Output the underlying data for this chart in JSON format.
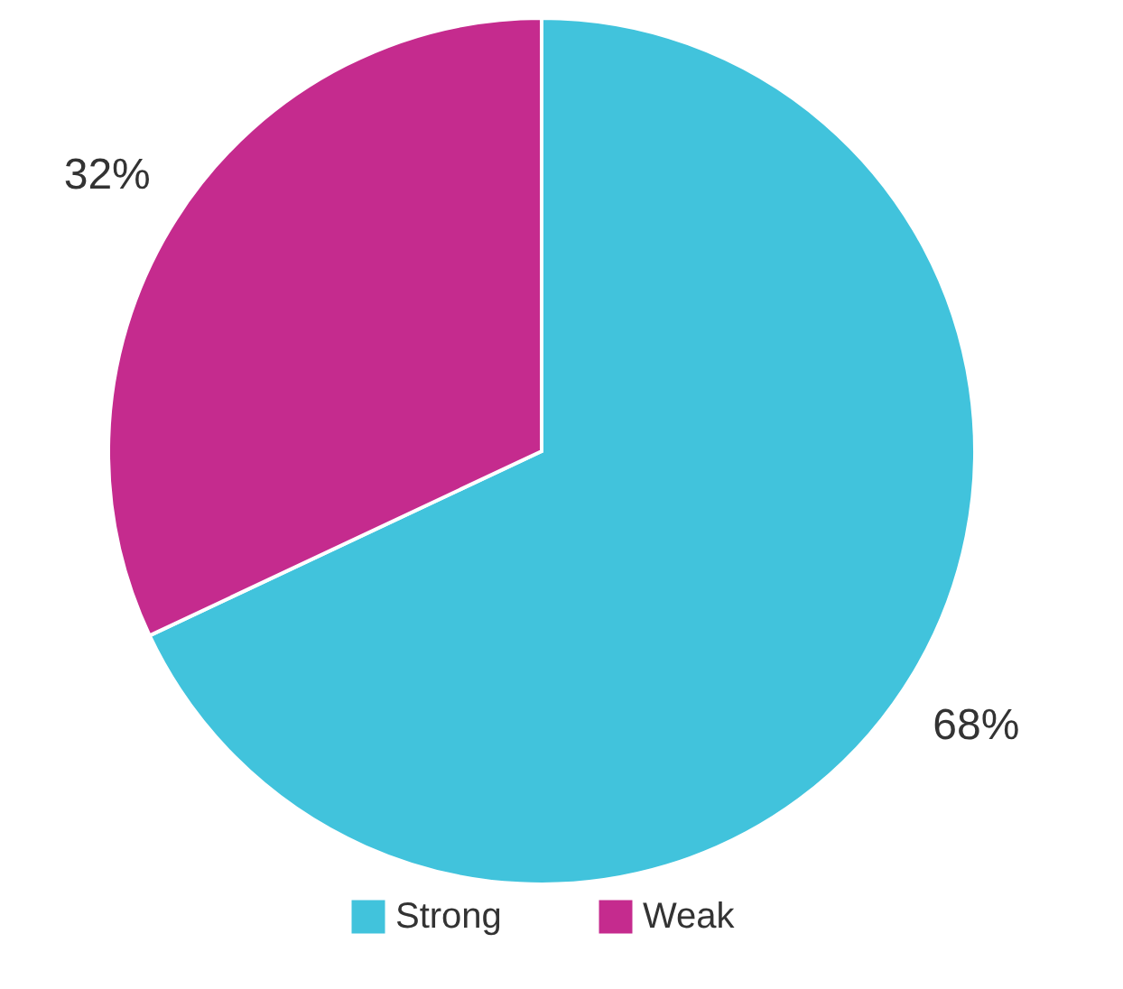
{
  "chart_data": {
    "type": "pie",
    "categories": [
      "Strong",
      "Weak"
    ],
    "values": [
      68,
      32
    ],
    "colors": [
      "#41c3dc",
      "#c52b8e"
    ],
    "value_labels": [
      "68%",
      "32%"
    ],
    "legend": "bottom"
  }
}
